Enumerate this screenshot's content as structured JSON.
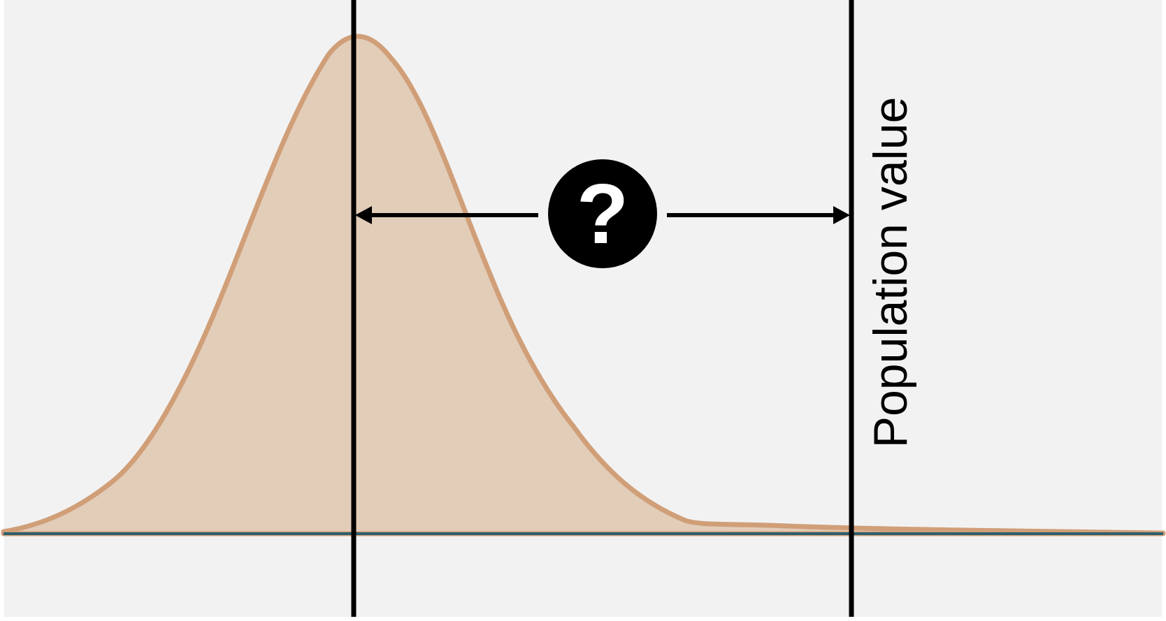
{
  "labels": {
    "population": "Population value",
    "question": "?"
  },
  "colors": {
    "background": "#f2f2f2",
    "curve_fill": "#e2cdb9",
    "curve_stroke": "#d09f78",
    "baseline": "#2d5f6e",
    "line": "#000000",
    "badge": "#000000",
    "badge_text": "#ffffff"
  },
  "icons": {
    "left_arrow": "arrowhead-left-icon",
    "right_arrow": "arrowhead-right-icon",
    "question": "question-mark-icon"
  }
}
